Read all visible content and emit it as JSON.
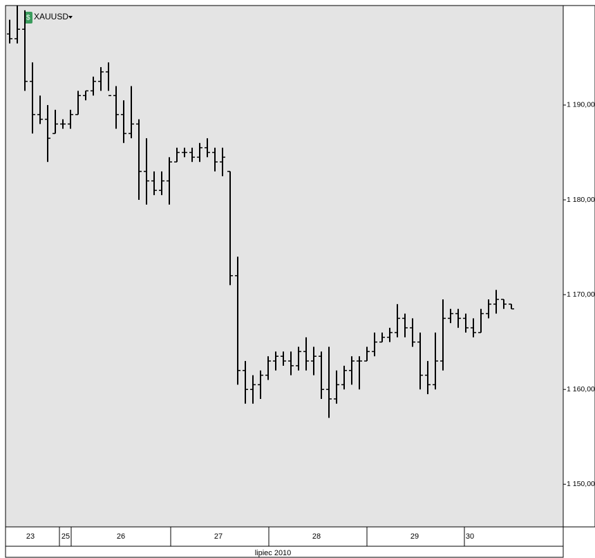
{
  "chart_data": {
    "type": "ohlc",
    "symbol": "XAUUSD",
    "color": "#000000",
    "open": [
      1197.5,
      1197,
      1198,
      1192.5,
      1189,
      1188.5,
      1187,
      1188,
      1188,
      1189,
      1191,
      1191.5,
      1192.5,
      1193.5,
      1191,
      1189,
      1187,
      1188,
      1183,
      1182,
      1181,
      1182,
      1184,
      1185,
      1185,
      1184.5,
      1185.5,
      1185,
      1184,
      1183,
      1172,
      1162,
      1160,
      1160.5,
      1161.5,
      1163,
      1163.5,
      1163,
      1162.5,
      1164,
      1163,
      1163.5,
      1160,
      1159,
      1160.5,
      1162,
      1163,
      1163,
      1164,
      1165,
      1165.5,
      1166,
      1167.5,
      1166.5,
      1165,
      1161.5,
      1160.5,
      1163,
      1167.5,
      1168,
      1167.5,
      1166.5,
      1166,
      1168,
      1169,
      1169.5,
      1169
    ],
    "high": [
      1199,
      1200.5,
      1200,
      1194.5,
      1191,
      1190,
      1189.5,
      1188.5,
      1189.5,
      1191.5,
      1191.5,
      1193,
      1194,
      1194.5,
      1192,
      1190.5,
      1192,
      1188.5,
      1186.5,
      1183,
      1183,
      1184.5,
      1185.5,
      1185.5,
      1185.5,
      1186,
      1186.5,
      1185.5,
      1185.5,
      1183,
      1174,
      1163,
      1161.5,
      1162,
      1163.5,
      1164,
      1164,
      1164,
      1164.5,
      1165.5,
      1164.5,
      1164,
      1164.5,
      1162,
      1162.5,
      1163.5,
      1163.5,
      1164.5,
      1166,
      1166,
      1166.5,
      1169,
      1168,
      1167.5,
      1166,
      1163,
      1166,
      1169.5,
      1168.5,
      1168.5,
      1168,
      1167.5,
      1168.5,
      1169.5,
      1170.5,
      1169.5,
      1169
    ],
    "low": [
      1196.5,
      1196.5,
      1191.5,
      1187,
      1188,
      1184,
      1187,
      1187.5,
      1187.5,
      1189,
      1190.5,
      1191,
      1191.5,
      1191.5,
      1187.5,
      1186,
      1186.5,
      1180,
      1179.5,
      1180.5,
      1180.5,
      1179.5,
      1184,
      1184.5,
      1184,
      1184,
      1184.5,
      1183,
      1182.5,
      1171,
      1160.5,
      1158.5,
      1158.5,
      1159,
      1161,
      1162,
      1162.5,
      1161.5,
      1162,
      1162,
      1161.5,
      1159,
      1157,
      1158.5,
      1160,
      1160.5,
      1160,
      1163,
      1163.5,
      1165,
      1165,
      1165.5,
      1165.5,
      1164.5,
      1160,
      1159.5,
      1160,
      1162,
      1167,
      1166.5,
      1166,
      1165.5,
      1166,
      1167.5,
      1168,
      1168.5,
      1168.5
    ],
    "close": [
      1197,
      1198,
      1192.5,
      1189,
      1188.5,
      1186.5,
      1188,
      1188,
      1189,
      1191,
      1191.5,
      1192.5,
      1193.5,
      1191,
      1189,
      1187,
      1188,
      1183,
      1182,
      1181,
      1182,
      1184,
      1185,
      1185,
      1184.5,
      1185.5,
      1185,
      1184,
      1184.5,
      1172,
      1162,
      1160,
      1160.5,
      1161.5,
      1163,
      1163.5,
      1163,
      1162.5,
      1164,
      1163,
      1163.5,
      1160,
      1159,
      1160.5,
      1162,
      1163,
      1163,
      1164,
      1165,
      1165.5,
      1166,
      1167.5,
      1166.5,
      1165,
      1161.5,
      1160.5,
      1163,
      1167.5,
      1168,
      1167.5,
      1166.5,
      1166,
      1168,
      1169,
      1169.5,
      1169,
      1168.5
    ],
    "ylim": [
      1145.5,
      1200.5
    ],
    "yticks": [
      {
        "value": 1150,
        "label": "1 150,00"
      },
      {
        "value": 1160,
        "label": "1 160,00"
      },
      {
        "value": 1170,
        "label": "1 170,00"
      },
      {
        "value": 1180,
        "label": "1 180,00"
      },
      {
        "value": 1190,
        "label": "1 190,00"
      }
    ],
    "days": [
      "23",
      "25",
      "26",
      "27",
      "28",
      "29",
      "30"
    ],
    "period": "lipiec 2010"
  }
}
